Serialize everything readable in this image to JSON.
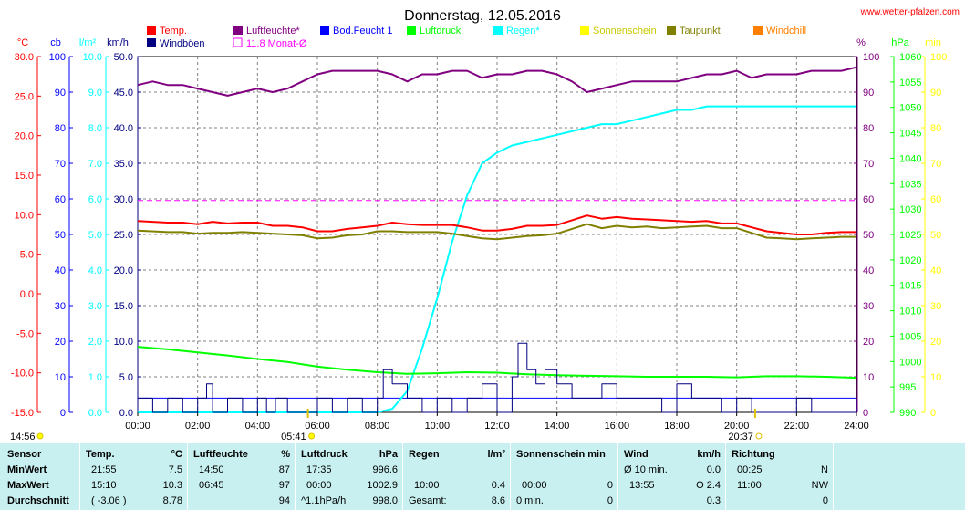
{
  "page": {
    "title": "Donnerstag, 12.05.2016",
    "site": "www.wetter-pfalzen.com"
  },
  "legend": [
    {
      "label": "Temp.",
      "color": "#ff0000"
    },
    {
      "label": "Windböen",
      "color": "#000080"
    },
    {
      "label": "Luftfeuchte*",
      "color": "#800080"
    },
    {
      "label": "11.8 Monat-Ø",
      "color": "#ff00ff",
      "outline": true
    },
    {
      "label": "Bod.Feucht 1",
      "color": "#0000ff"
    },
    {
      "label": "Luftdruck",
      "color": "#00ff00"
    },
    {
      "label": "Regen*",
      "color": "#00ffff"
    },
    {
      "label": "Sonnenschein",
      "color": "#ffff00"
    },
    {
      "label": "Taupunkt",
      "color": "#808000"
    },
    {
      "label": "Windchill",
      "color": "#ff8000"
    }
  ],
  "axes": {
    "temp": {
      "unit": "°C",
      "color": "#ff0000",
      "range": [
        -15,
        30
      ],
      "ticks": [
        "30.0",
        "25.0",
        "20.0",
        "15.0",
        "10.0",
        "5.0",
        "0.0",
        "-5.0",
        "-10.0",
        "-15.0"
      ]
    },
    "cb": {
      "unit": "cb",
      "color": "#0000ff",
      "range": [
        0,
        100
      ],
      "ticks": [
        "100",
        "90",
        "80",
        "70",
        "60",
        "50",
        "40",
        "30",
        "20",
        "10",
        "0"
      ]
    },
    "rain": {
      "unit": "l/m²",
      "color": "#00ffff",
      "range": [
        0,
        10
      ],
      "ticks": [
        "10.0",
        "9.0",
        "8.0",
        "7.0",
        "6.0",
        "5.0",
        "4.0",
        "3.0",
        "2.0",
        "1.0",
        "0.0"
      ]
    },
    "wind": {
      "unit": "km/h",
      "color": "#000080",
      "range": [
        0,
        50
      ],
      "ticks": [
        "50.0",
        "45.0",
        "40.0",
        "35.0",
        "30.0",
        "25.0",
        "20.0",
        "15.0",
        "10.0",
        "5.0",
        "0.0"
      ]
    },
    "humidity": {
      "unit": "%",
      "color": "#800080",
      "range": [
        0,
        100
      ],
      "ticks": [
        "100",
        "90",
        "80",
        "70",
        "60",
        "50",
        "40",
        "30",
        "20",
        "10",
        "0"
      ]
    },
    "pressure": {
      "unit": "hPa",
      "color": "#00ff00",
      "range": [
        990,
        1060
      ],
      "ticks": [
        "1060",
        "1055",
        "1050",
        "1045",
        "1040",
        "1035",
        "1030",
        "1025",
        "1020",
        "1015",
        "1010",
        "1005",
        "1000",
        "995",
        "990"
      ]
    },
    "sun": {
      "unit": "min",
      "color": "#ffff00",
      "range": [
        0,
        100
      ],
      "ticks": [
        "100",
        "90",
        "80",
        "70",
        "60",
        "50",
        "40",
        "30",
        "20",
        "10",
        "0"
      ]
    },
    "x": {
      "ticks": [
        "00:00",
        "02:00",
        "04:00",
        "06:00",
        "08:00",
        "10:00",
        "12:00",
        "14:00",
        "16:00",
        "18:00",
        "20:00",
        "22:00",
        "24:00"
      ]
    }
  },
  "markers": {
    "sunrise": "05:41",
    "sunset": "20:37",
    "sunshine_start": "14:56"
  },
  "chart_data": {
    "type": "line",
    "title": "Donnerstag, 12.05.2016",
    "x_unit": "hours",
    "series": [
      {
        "name": "Temp.",
        "axis": "temp",
        "color": "#ff0000",
        "x": [
          0,
          1,
          1.5,
          2,
          2.5,
          3,
          3.5,
          4,
          4.5,
          5,
          5.5,
          6,
          6.5,
          7,
          7.5,
          8,
          8.5,
          9,
          9.5,
          10,
          10.5,
          11,
          11.5,
          12,
          12.5,
          13,
          13.5,
          14,
          14.5,
          15,
          15.5,
          16,
          16.5,
          17,
          17.5,
          18,
          18.5,
          19,
          19.5,
          20,
          20.5,
          21,
          21.5,
          22,
          22.5,
          23,
          23.5,
          24
        ],
        "y": [
          9.2,
          9.0,
          9.0,
          8.8,
          9.1,
          8.9,
          9.0,
          9.0,
          8.6,
          8.6,
          8.4,
          7.9,
          7.9,
          8.2,
          8.4,
          8.6,
          9.0,
          8.8,
          8.7,
          8.7,
          8.7,
          8.4,
          8.0,
          8.0,
          8.2,
          8.6,
          8.6,
          8.7,
          9.3,
          9.9,
          9.5,
          9.7,
          9.5,
          9.4,
          9.3,
          9.2,
          9.1,
          9.2,
          8.9,
          8.9,
          8.4,
          7.9,
          7.7,
          7.5,
          7.5,
          7.7,
          7.8,
          7.8
        ]
      },
      {
        "name": "Taupunkt",
        "axis": "temp",
        "color": "#808000",
        "x": [
          0,
          1,
          1.5,
          2,
          2.5,
          3,
          3.5,
          4,
          4.5,
          5,
          5.5,
          6,
          6.5,
          7,
          7.5,
          8,
          8.5,
          9,
          9.5,
          10,
          10.5,
          11,
          11.5,
          12,
          12.5,
          13,
          13.5,
          14,
          14.5,
          15,
          15.5,
          16,
          16.5,
          17,
          17.5,
          18,
          18.5,
          19,
          19.5,
          20,
          20.5,
          21,
          21.5,
          22,
          22.5,
          23,
          23.5,
          24
        ],
        "y": [
          8.0,
          7.8,
          7.8,
          7.6,
          7.7,
          7.7,
          7.8,
          7.7,
          7.6,
          7.5,
          7.4,
          7.0,
          7.1,
          7.4,
          7.5,
          7.9,
          7.9,
          7.8,
          7.8,
          7.8,
          7.6,
          7.3,
          7.0,
          6.9,
          7.1,
          7.3,
          7.4,
          7.6,
          8.2,
          8.8,
          8.3,
          8.6,
          8.4,
          8.5,
          8.3,
          8.4,
          8.5,
          8.6,
          8.3,
          8.3,
          7.7,
          7.1,
          7.0,
          6.9,
          7.0,
          7.1,
          7.2,
          7.2
        ]
      },
      {
        "name": "Luftfeuchte*",
        "axis": "humidity",
        "color": "#800080",
        "x": [
          0,
          0.5,
          1,
          1.5,
          2,
          2.5,
          3,
          3.5,
          4,
          4.5,
          5,
          5.5,
          6,
          6.5,
          7,
          7.5,
          8,
          8.5,
          9,
          9.5,
          10,
          10.5,
          11,
          11.5,
          12,
          12.5,
          13,
          13.5,
          14,
          14.5,
          15,
          15.5,
          16,
          16.5,
          17,
          17.5,
          18,
          18.5,
          19,
          19.5,
          20,
          20.5,
          21,
          21.5,
          22,
          22.5,
          23,
          23.5,
          24
        ],
        "y": [
          92,
          93,
          92,
          92,
          91,
          90,
          89,
          90,
          91,
          90,
          91,
          93,
          95,
          96,
          96,
          96,
          96,
          95,
          93,
          95,
          95,
          96,
          96,
          94,
          95,
          95,
          96,
          96,
          95,
          93,
          90,
          91,
          92,
          93,
          93,
          93,
          93,
          94,
          95,
          95,
          96,
          94,
          95,
          95,
          95,
          96,
          96,
          96,
          97
        ]
      },
      {
        "name": "11.8 Monat-Ø",
        "axis": "temp",
        "color": "#ff00ff",
        "dashed": true,
        "x": [
          0,
          24
        ],
        "y": [
          11.8,
          11.8
        ]
      },
      {
        "name": "Luftdruck",
        "axis": "pressure",
        "color": "#00ff00",
        "x": [
          0,
          1,
          2,
          3,
          4,
          5,
          6,
          7,
          8,
          9,
          10,
          11,
          12,
          13,
          14,
          15,
          16,
          17,
          18,
          19,
          20,
          21,
          22,
          23,
          24
        ],
        "y": [
          1002.9,
          1002.4,
          1001.8,
          1001.2,
          1000.5,
          999.9,
          999.0,
          998.4,
          997.9,
          997.6,
          997.7,
          997.9,
          997.8,
          997.5,
          997.3,
          997.2,
          997.1,
          997.0,
          997.0,
          997.0,
          996.9,
          997.1,
          997.1,
          997.0,
          996.8
        ]
      },
      {
        "name": "Regen*",
        "axis": "rain",
        "color": "#00ffff",
        "x": [
          0,
          8.0,
          8.5,
          9.0,
          9.5,
          10.0,
          10.5,
          11.0,
          11.5,
          12.0,
          12.5,
          13.0,
          13.5,
          14.0,
          14.5,
          15.0,
          15.5,
          16.0,
          16.5,
          17.0,
          17.5,
          18.0,
          18.5,
          19.0,
          20.0,
          21.0,
          22.0,
          23.0,
          24.0
        ],
        "y": [
          0,
          0,
          0.1,
          0.6,
          1.8,
          3.2,
          4.8,
          6.1,
          7.0,
          7.3,
          7.5,
          7.6,
          7.7,
          7.8,
          7.9,
          8.0,
          8.1,
          8.1,
          8.2,
          8.3,
          8.4,
          8.5,
          8.5,
          8.6,
          8.6,
          8.6,
          8.6,
          8.6,
          8.6
        ]
      },
      {
        "name": "Windböen",
        "axis": "wind",
        "color": "#000080",
        "x": [
          0,
          0.5,
          1,
          1.5,
          2,
          2.3,
          2.5,
          3,
          3.5,
          4,
          4.3,
          4.6,
          5,
          5.5,
          6,
          6.5,
          7,
          7.5,
          8,
          8.2,
          8.5,
          9,
          9.5,
          10,
          10.5,
          11,
          11.5,
          12,
          12.5,
          12.7,
          13,
          13.3,
          13.6,
          14,
          14.5,
          15,
          15.5,
          16,
          16.5,
          17,
          17.5,
          18,
          18.5,
          19,
          19.5,
          20,
          20.5,
          21,
          21.5,
          22,
          22.5,
          23,
          23.5,
          24
        ],
        "y": [
          2,
          0,
          2,
          0,
          2,
          4,
          0,
          2,
          0,
          2,
          0,
          2,
          0,
          0,
          2,
          0,
          2,
          0,
          2,
          6,
          4,
          2,
          0,
          2,
          0,
          2,
          4,
          0,
          5,
          9.7,
          6,
          4,
          6,
          4,
          2,
          2,
          4,
          2,
          2,
          2,
          0,
          4,
          2,
          2,
          0,
          2,
          0,
          0,
          0,
          2,
          0,
          0,
          0,
          2
        ]
      },
      {
        "name": "Windchill",
        "axis": "temp",
        "color": "#ff8000",
        "x": [],
        "y": []
      }
    ],
    "wind_avg_line": {
      "axis": "wind",
      "value": 2.0,
      "color": "#0000ff"
    }
  },
  "stats": {
    "sensor": {
      "header": "Sensor",
      "rows": [
        "MinWert",
        "MaxWert",
        "Durchschnitt"
      ]
    },
    "temp": {
      "header": "Temp.",
      "unit": "°C",
      "rows": [
        [
          "21:55",
          "7.5"
        ],
        [
          "15:10",
          "10.3"
        ],
        [
          "( -3.06 )",
          "8.78"
        ]
      ]
    },
    "humidity": {
      "header": "Luftfeuchte",
      "unit": "%",
      "rows": [
        [
          "14:50",
          "87"
        ],
        [
          "06:45",
          "97"
        ],
        [
          "",
          "94"
        ]
      ]
    },
    "pressure": {
      "header": "Luftdruck",
      "unit": "hPa",
      "rows": [
        [
          "17:35",
          "996.6"
        ],
        [
          "00:00",
          "1002.9"
        ],
        [
          "^1.1hPa/h",
          "998.0"
        ]
      ]
    },
    "rain": {
      "header": "Regen",
      "unit": "l/m²",
      "rows": [
        [
          "",
          ""
        ],
        [
          "10:00",
          "0.4"
        ],
        [
          "Gesamt:",
          "8.6"
        ]
      ]
    },
    "sun": {
      "header": "Sonnenschein min",
      "rows": [
        [
          "",
          ""
        ],
        [
          "00:00",
          "0"
        ],
        [
          "0 min.",
          "0"
        ]
      ]
    },
    "wind": {
      "header": "Wind",
      "unit": "km/h",
      "rows": [
        [
          "Ø 10 min.",
          "0.0"
        ],
        [
          "13:55",
          "O 2.4"
        ],
        [
          "",
          "0.3"
        ]
      ]
    },
    "dir": {
      "header": "Richtung",
      "rows": [
        [
          "00:25",
          "N"
        ],
        [
          "11:00",
          "NW"
        ],
        [
          "",
          "0"
        ]
      ]
    }
  }
}
